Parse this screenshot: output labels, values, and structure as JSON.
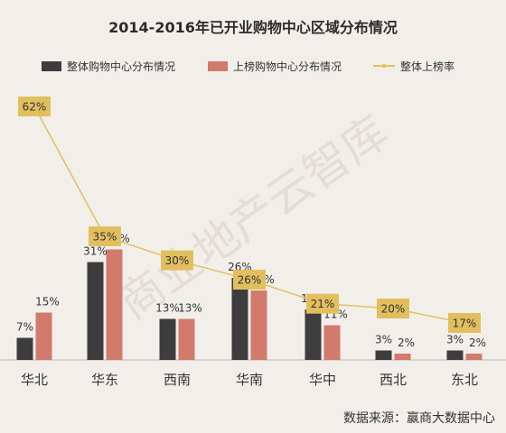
{
  "chart_data": {
    "type": "bar",
    "title": "2014-2016年已开业购物中心区域分布情况",
    "categories": [
      "华北",
      "华东",
      "西南",
      "华南",
      "华中",
      "西北",
      "东北"
    ],
    "series": [
      {
        "name": "整体购物中心分布情况",
        "values": [
          7,
          31,
          13,
          26,
          16,
          3,
          3
        ],
        "labels": [
          "7%",
          "31%",
          "13%",
          "26%",
          "16%",
          "3%",
          "3%"
        ],
        "color": "#3d3d3d"
      },
      {
        "name": "上榜购物中心分布情况",
        "values": [
          15,
          35,
          13,
          22,
          11,
          2,
          2
        ],
        "labels": [
          "15%",
          "35%",
          "13%",
          "22%",
          "11%",
          "2%",
          "2%"
        ],
        "color": "#d27a6c"
      },
      {
        "name": "整体上榜率",
        "type": "line",
        "values": [
          62,
          35,
          30,
          26,
          21,
          20,
          17
        ],
        "labels": [
          "62%",
          "35%",
          "30%",
          "26%",
          "21%",
          "20%",
          "17%"
        ],
        "color": "#e2bf5e"
      }
    ],
    "ylim": [
      0,
      45
    ],
    "legend": "top",
    "grid": false,
    "source": "数据来源：赢商大数据中心",
    "watermark": "商业地产云智库"
  }
}
